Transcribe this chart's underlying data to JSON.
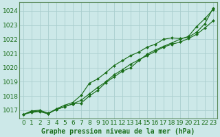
{
  "title": "Graphe pression niveau de la mer (hPa)",
  "bg_color": "#cce8e8",
  "grid_color": "#aacece",
  "line_color": "#1a6e1a",
  "marker_color": "#1a6e1a",
  "xlim": [
    -0.5,
    23.5
  ],
  "ylim": [
    1016.4,
    1024.6
  ],
  "yticks": [
    1017,
    1018,
    1019,
    1020,
    1021,
    1022,
    1023,
    1024
  ],
  "xticks": [
    0,
    1,
    2,
    3,
    4,
    5,
    6,
    7,
    8,
    9,
    10,
    11,
    12,
    13,
    14,
    15,
    16,
    17,
    18,
    19,
    20,
    21,
    22,
    23
  ],
  "series": [
    [
      1016.7,
      1016.85,
      1016.9,
      1016.75,
      1017.05,
      1017.25,
      1017.45,
      1017.7,
      1018.15,
      1018.6,
      1019.0,
      1019.5,
      1019.85,
      1020.25,
      1020.55,
      1020.85,
      1021.15,
      1021.45,
      1021.65,
      1021.8,
      1022.05,
      1022.35,
      1022.8,
      1023.3
    ],
    [
      1016.7,
      1016.9,
      1016.95,
      1016.75,
      1017.1,
      1017.35,
      1017.55,
      1018.05,
      1018.9,
      1019.2,
      1019.65,
      1020.15,
      1020.5,
      1020.85,
      1021.1,
      1021.45,
      1021.65,
      1022.0,
      1022.1,
      1022.05,
      1022.15,
      1022.5,
      1023.1,
      1024.2
    ],
    [
      1016.7,
      1016.95,
      1017.0,
      1016.8,
      1017.05,
      1017.25,
      1017.45,
      1017.5,
      1018.0,
      1018.4,
      1018.95,
      1019.35,
      1019.75,
      1020.0,
      1020.5,
      1020.95,
      1021.25,
      1021.5,
      1021.75,
      1022.0,
      1022.2,
      1022.9,
      1023.45,
      1024.1
    ]
  ],
  "xlabel_fontsize": 6.5,
  "title_fontsize": 7,
  "marker": "D",
  "markersize": 2.0,
  "linewidth": 0.85,
  "spine_color": "#5a8a5a"
}
